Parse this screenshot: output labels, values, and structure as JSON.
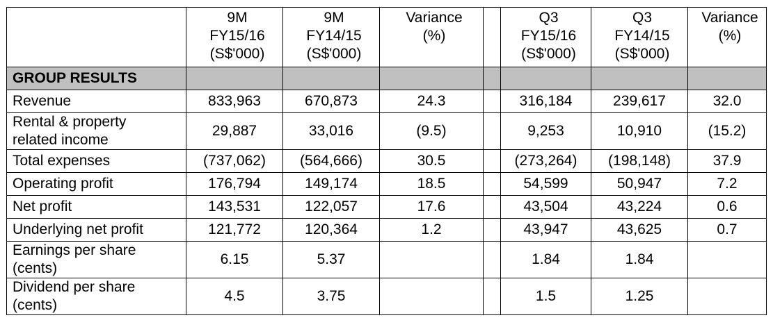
{
  "headers": [
    [
      "9M",
      "FY15/16",
      "(S$'000)"
    ],
    [
      "9M",
      "FY14/15",
      "(S$'000)"
    ],
    [
      "Variance",
      "(%)",
      ""
    ],
    [
      "Q3",
      "FY15/16",
      "(S$'000)"
    ],
    [
      "Q3",
      "FY14/15",
      "(S$'000)"
    ],
    [
      "Variance",
      "(%)",
      ""
    ]
  ],
  "section_title": "GROUP RESULTS",
  "rows": [
    {
      "label": [
        "Revenue"
      ],
      "values": [
        "833,963",
        "670,873",
        "24.3",
        "316,184",
        "239,617",
        "32.0"
      ]
    },
    {
      "label": [
        "Rental & property",
        "related income"
      ],
      "values": [
        "29,887",
        "33,016",
        "(9.5)",
        "9,253",
        "10,910",
        "(15.2)"
      ]
    },
    {
      "label": [
        "Total expenses"
      ],
      "values": [
        "(737,062)",
        "(564,666)",
        "30.5",
        "(273,264)",
        "(198,148)",
        "37.9"
      ]
    },
    {
      "label": [
        "Operating profit"
      ],
      "values": [
        "176,794",
        "149,174",
        "18.5",
        "54,599",
        "50,947",
        "7.2"
      ]
    },
    {
      "label": [
        "Net profit"
      ],
      "values": [
        "143,531",
        "122,057",
        "17.6",
        "43,504",
        "43,224",
        "0.6"
      ]
    },
    {
      "label": [
        "Underlying net profit"
      ],
      "values": [
        "121,772",
        "120,364",
        "1.2",
        "43,947",
        "43,625",
        "0.7"
      ]
    },
    {
      "label": [
        "Earnings per share",
        "(cents)"
      ],
      "values": [
        "6.15",
        "5.37",
        "",
        "1.84",
        "1.84",
        ""
      ]
    },
    {
      "label": [
        "Dividend per share",
        "(cents)"
      ],
      "values": [
        "4.5",
        "3.75",
        "",
        "1.5",
        "1.25",
        ""
      ]
    }
  ],
  "colors": {
    "section_fill": "#c0c0c0",
    "border": "#000000"
  }
}
